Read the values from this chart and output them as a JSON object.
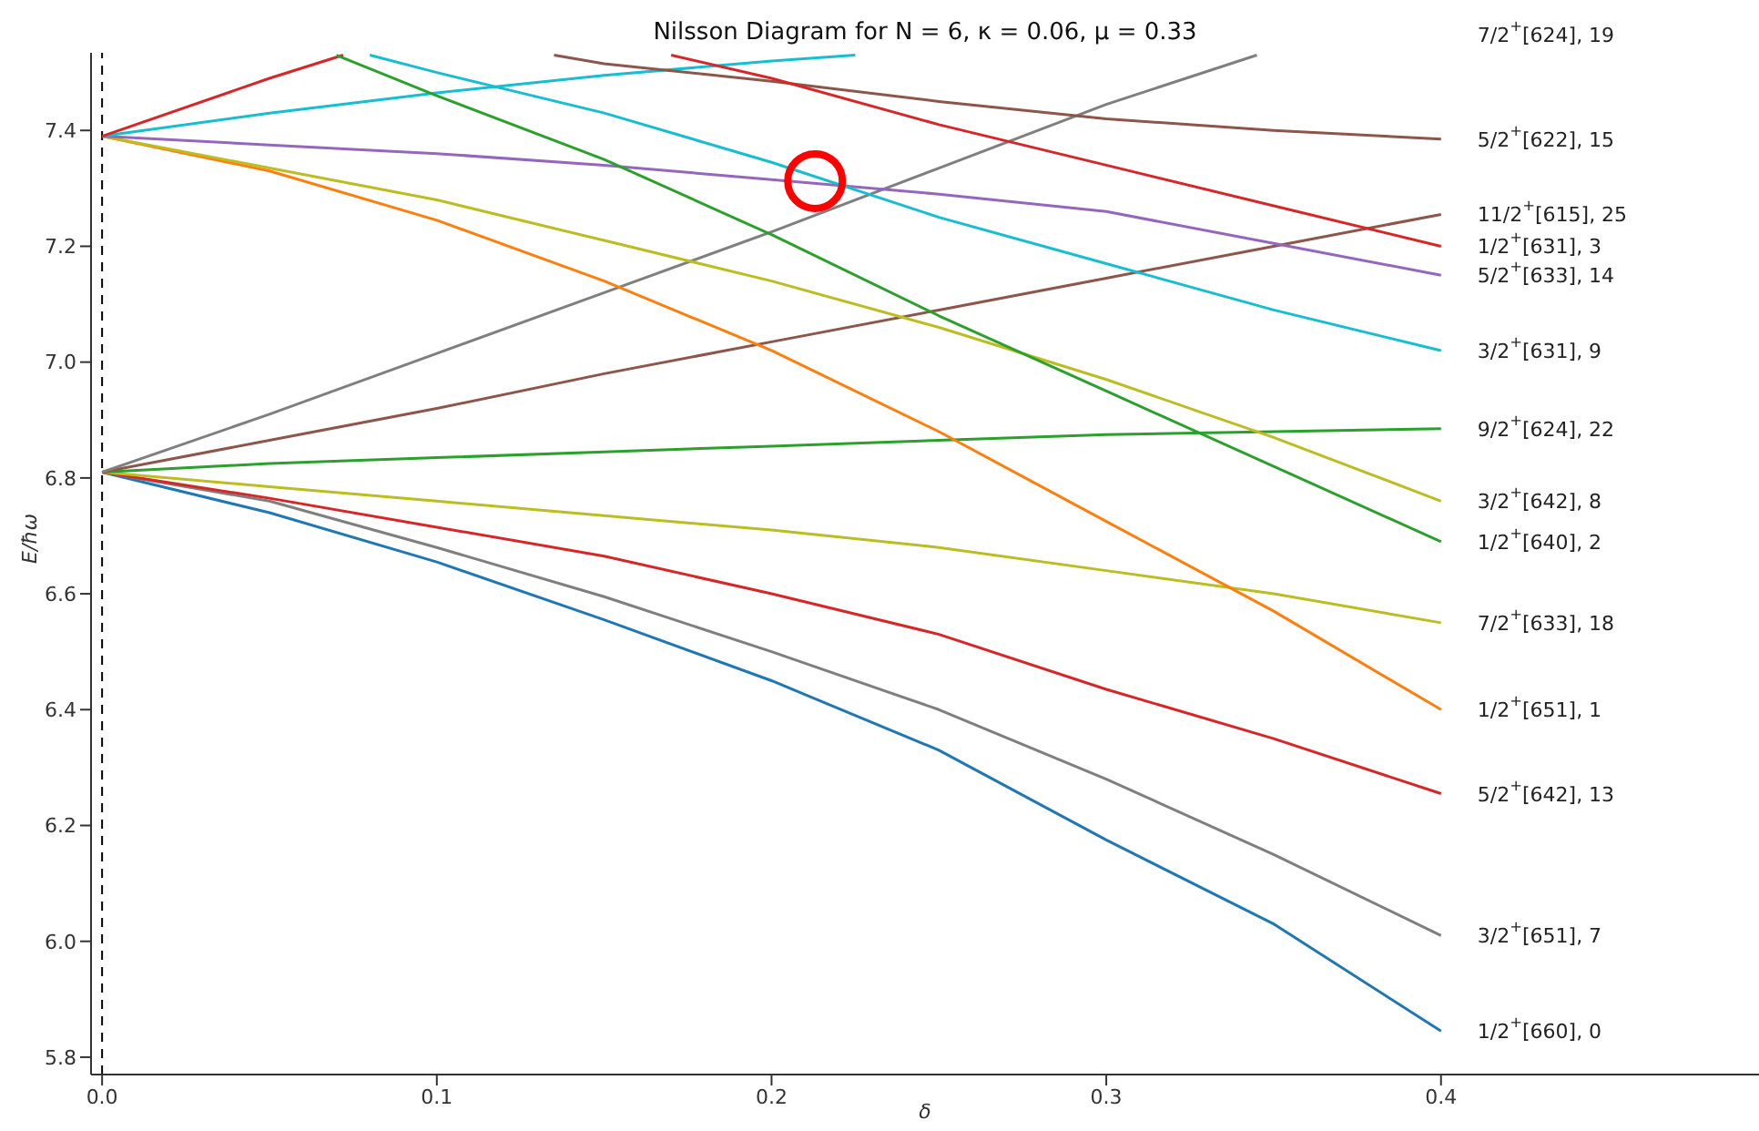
{
  "chart_data": {
    "type": "line",
    "title": "Nilsson Diagram for N = 6, κ = 0.06, μ = 0.33",
    "xlabel": "δ",
    "ylabel": "E/ħω",
    "x": [
      0,
      0.05,
      0.1,
      0.15,
      0.2,
      0.25,
      0.3,
      0.35,
      0.4
    ],
    "series": [
      {
        "name": "1/2$^{+}$[660], 0",
        "color": "#1f77b4",
        "values": [
          6.81,
          6.74,
          6.655,
          6.555,
          6.45,
          6.33,
          6.175,
          6.03,
          5.845
        ]
      },
      {
        "name": "3/2$^{+}$[651], 7",
        "color": "#7f7f7f",
        "values": [
          6.81,
          6.76,
          6.68,
          6.595,
          6.5,
          6.4,
          6.28,
          6.15,
          6.01
        ]
      },
      {
        "name": "5/2$^{+}$[642], 13",
        "color": "#d62728",
        "values": [
          6.81,
          6.765,
          6.715,
          6.665,
          6.6,
          6.53,
          6.435,
          6.35,
          6.255
        ]
      },
      {
        "name": "7/2$^{+}$[633], 18",
        "color": "#bcbd22",
        "values": [
          6.81,
          6.785,
          6.76,
          6.735,
          6.71,
          6.68,
          6.64,
          6.6,
          6.55
        ]
      },
      {
        "name": "9/2$^{+}$[624], 22",
        "color": "#2ca02c",
        "values": [
          6.81,
          6.825,
          6.835,
          6.845,
          6.855,
          6.865,
          6.875,
          6.88,
          6.885
        ]
      },
      {
        "name": "11/2$^{+}$[615], 25",
        "color": "#8c564b",
        "values": [
          6.81,
          6.865,
          6.92,
          6.98,
          7.035,
          7.09,
          7.145,
          7.2,
          7.255
        ]
      },
      {
        "color": "#7f7f7f",
        "x": [
          0,
          0.05,
          0.1,
          0.15,
          0.2,
          0.25,
          0.3,
          0.345
        ],
        "values": [
          6.81,
          6.91,
          7.015,
          7.12,
          7.225,
          7.335,
          7.445,
          7.53
        ]
      },
      {
        "name": "1/2$^{+}$[651], 1",
        "color": "#ff7f0e",
        "values": [
          7.39,
          7.33,
          7.245,
          7.14,
          7.02,
          6.88,
          6.725,
          6.57,
          6.4
        ]
      },
      {
        "name": "3/2$^{+}$[642], 8",
        "color": "#bcbd22",
        "values": [
          7.39,
          7.335,
          7.28,
          7.21,
          7.14,
          7.06,
          6.97,
          6.87,
          6.76
        ]
      },
      {
        "name": "5/2$^{+}$[633], 14",
        "color": "#9467bd",
        "values": [
          7.39,
          7.375,
          7.36,
          7.34,
          7.315,
          7.29,
          7.26,
          7.205,
          7.15
        ]
      },
      {
        "name": "7/2$^{+}$[624], 19",
        "color": "#17becf",
        "x": [
          0,
          0.05,
          0.1,
          0.15,
          0.2,
          0.225
        ],
        "values": [
          7.39,
          7.43,
          7.465,
          7.495,
          7.52,
          7.53
        ]
      },
      {
        "color": "#d62728",
        "x": [
          0,
          0.05,
          0.072
        ],
        "values": [
          7.39,
          7.49,
          7.53
        ]
      },
      {
        "name": "1/2$^{+}$[640], 2",
        "color": "#2ca02c",
        "x": [
          0.07,
          0.1,
          0.15,
          0.2,
          0.25,
          0.3,
          0.35,
          0.4
        ],
        "values": [
          7.53,
          7.46,
          7.35,
          7.22,
          7.08,
          6.95,
          6.82,
          6.69
        ]
      },
      {
        "name": "3/2$^{+}$[631], 9",
        "color": "#17becf",
        "x": [
          0.08,
          0.1,
          0.15,
          0.2,
          0.25,
          0.3,
          0.35,
          0.4
        ],
        "values": [
          7.53,
          7.5,
          7.43,
          7.345,
          7.25,
          7.17,
          7.09,
          7.02
        ]
      },
      {
        "name": "5/2$^{+}$[622], 15",
        "color": "#8c564b",
        "x": [
          0.135,
          0.15,
          0.2,
          0.25,
          0.3,
          0.35,
          0.4
        ],
        "values": [
          7.53,
          7.515,
          7.485,
          7.45,
          7.42,
          7.4,
          7.385
        ]
      },
      {
        "name": "1/2$^{+}$[631], 3",
        "color": "#d62728",
        "x": [
          0.17,
          0.2,
          0.25,
          0.3,
          0.35,
          0.4
        ],
        "values": [
          7.53,
          7.49,
          7.41,
          7.34,
          7.27,
          7.2
        ]
      }
    ],
    "xlim": [
      -0.0033,
      0.495
    ],
    "ylim": [
      5.77,
      7.534
    ],
    "xticks": [
      {
        "value": 0,
        "label": "0.0"
      },
      0.1,
      0.2,
      0.3,
      0.4
    ],
    "yticks": [
      5.8,
      {
        "value": 6,
        "label": "6.0"
      },
      6.2,
      6.4,
      6.6,
      6.8,
      {
        "value": 7,
        "label": "7.0"
      },
      7.2,
      7.4
    ],
    "ref_lines": [
      {
        "axis": "x",
        "value": 0,
        "color": "#000000",
        "line_style": "dashed"
      }
    ],
    "marker": "none",
    "line_style": "solid",
    "grid": false
  }
}
